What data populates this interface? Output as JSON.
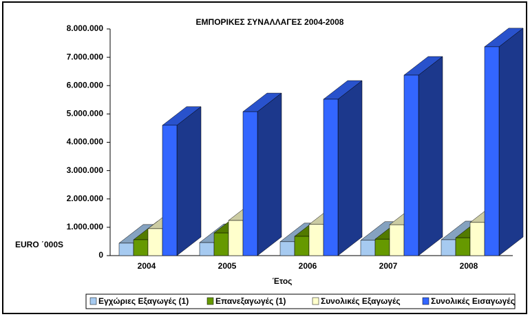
{
  "chart_data": {
    "type": "bar3d",
    "title": "ΕΜΠΟΡΙΚΕΣ ΣΥΝΑΛΛΑΓΕΣ 2004-2008",
    "y_label": "EURO ΄000S",
    "x_label": "Έτος",
    "categories": [
      "2004",
      "2005",
      "2006",
      "2007",
      "2008"
    ],
    "series": [
      {
        "name": "Εγχώριες Εξαγωγές (1)",
        "color": "#a6caf0",
        "values": [
          440000,
          460000,
          490000,
          540000,
          560000
        ]
      },
      {
        "name": "Επανεξαγωγές (1)",
        "color": "#669900",
        "values": [
          560000,
          800000,
          680000,
          580000,
          630000
        ]
      },
      {
        "name": "Συνολικές Εξαγωγές",
        "color": "#ffffcc",
        "values": [
          950000,
          1240000,
          1100000,
          1090000,
          1170000
        ]
      },
      {
        "name": "Συνολικές Εισαγωγές",
        "color": "#3366ff",
        "values": [
          4600000,
          5080000,
          5520000,
          6370000,
          7370000
        ]
      }
    ],
    "ylim": [
      0,
      8000000
    ],
    "yticks": [
      0,
      {
        "value": 1000000,
        "label": "1.000.000"
      },
      {
        "value": 2000000,
        "label": "2.000.000"
      },
      {
        "value": 3000000,
        "label": "3.000.000"
      },
      {
        "value": 4000000,
        "label": "4.000.000"
      },
      {
        "value": 5000000,
        "label": "5.000.000"
      },
      {
        "value": 6000000,
        "label": "6.000.000"
      },
      {
        "value": 7000000,
        "label": "7.000.000"
      },
      {
        "value": 8000000,
        "label": "8.000.000"
      }
    ],
    "legend": "bottom"
  }
}
